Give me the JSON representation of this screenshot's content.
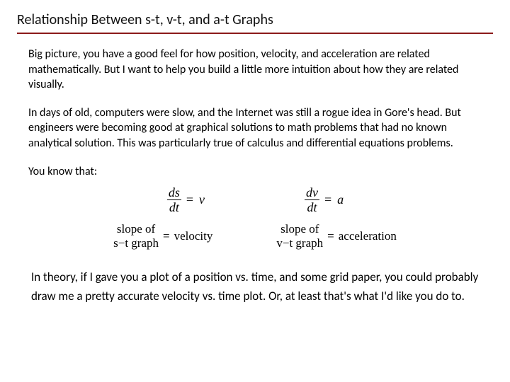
{
  "title": "Relationship Between s-t, v-t, and a-t Graphs",
  "rule_color": "#8b1a1a",
  "text_color": "#000000",
  "background_color": "#ffffff",
  "title_fontsize": 20,
  "body_fontsize": 16,
  "equation_fontsize": 18,
  "paragraphs": {
    "p1": "Big picture, you have a good feel for how position, velocity, and acceleration are related mathematically. But I want to help you build a little more intuition about how they are related visually.",
    "p2": "In days of old, computers were slow, and the Internet was still a rogue idea in Gore's head. But engineers were becoming good at graphical solutions to math problems that had no known analytical solution. This was particularly true of calculus and differential equations problems.",
    "p3": "You know that:",
    "p4": "In theory, if I gave you a plot of a position vs. time, and some grid paper, you could probably draw me a pretty accurate velocity vs. time plot. Or, at least that's what I'd like you do to."
  },
  "equations": {
    "left": {
      "num": "ds",
      "den": "dt",
      "rhs": "v"
    },
    "right": {
      "num": "dv",
      "den": "dt",
      "rhs": "a"
    }
  },
  "descriptions": {
    "left": {
      "line1": "slope of",
      "line2": "s−t graph",
      "rhs": "velocity"
    },
    "right": {
      "line1": "slope of",
      "line2": "v−t graph",
      "rhs": "acceleration"
    }
  },
  "equals": "="
}
